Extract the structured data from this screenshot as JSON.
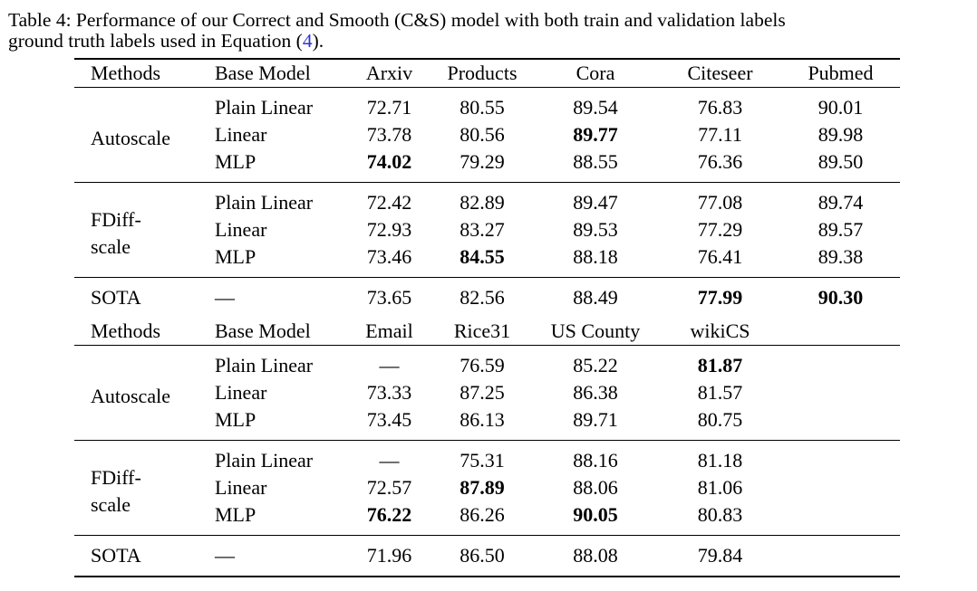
{
  "caption": {
    "line1": "Table 4: Performance of our Correct and Smooth (C&S) model with both train and validation labels",
    "line2_before_ref": "ground truth labels used in Equation (",
    "ref": "4",
    "line2_after_ref": ")."
  },
  "table": {
    "blocks": [
      {
        "header": [
          "Methods",
          "Base Model",
          "Arxiv",
          "Products",
          "Cora",
          "Citeseer",
          "Pubmed"
        ],
        "groups": [
          {
            "method": "Autoscale",
            "rows": [
              {
                "base": "Plain Linear",
                "values": [
                  "72.71",
                  "80.55",
                  "89.54",
                  "76.83",
                  "90.01"
                ],
                "bold": [
                  false,
                  false,
                  false,
                  false,
                  false
                ]
              },
              {
                "base": "Linear",
                "values": [
                  "73.78",
                  "80.56",
                  "89.77",
                  "77.11",
                  "89.98"
                ],
                "bold": [
                  false,
                  false,
                  true,
                  false,
                  false
                ]
              },
              {
                "base": "MLP",
                "values": [
                  "74.02",
                  "79.29",
                  "88.55",
                  "76.36",
                  "89.50"
                ],
                "bold": [
                  true,
                  false,
                  false,
                  false,
                  false
                ]
              }
            ]
          },
          {
            "method": "FDiff-\nscale",
            "rows": [
              {
                "base": "Plain Linear",
                "values": [
                  "72.42",
                  "82.89",
                  "89.47",
                  "77.08",
                  "89.74"
                ],
                "bold": [
                  false,
                  false,
                  false,
                  false,
                  false
                ]
              },
              {
                "base": "Linear",
                "values": [
                  "72.93",
                  "83.27",
                  "89.53",
                  "77.29",
                  "89.57"
                ],
                "bold": [
                  false,
                  false,
                  false,
                  false,
                  false
                ]
              },
              {
                "base": "MLP",
                "values": [
                  "73.46",
                  "84.55",
                  "88.18",
                  "76.41",
                  "89.38"
                ],
                "bold": [
                  false,
                  true,
                  false,
                  false,
                  false
                ]
              }
            ]
          }
        ],
        "sota": {
          "method": "SOTA",
          "base": "—",
          "values": [
            "73.65",
            "82.56",
            "88.49",
            "77.99",
            "90.30"
          ],
          "bold": [
            false,
            false,
            false,
            true,
            true
          ]
        }
      },
      {
        "header": [
          "Methods",
          "Base Model",
          "Email",
          "Rice31",
          "US County",
          "wikiCS",
          ""
        ],
        "groups": [
          {
            "method": "Autoscale",
            "rows": [
              {
                "base": "Plain Linear",
                "values": [
                  "—",
                  "76.59",
                  "85.22",
                  "81.87",
                  ""
                ],
                "bold": [
                  false,
                  false,
                  false,
                  true,
                  false
                ]
              },
              {
                "base": "Linear",
                "values": [
                  "73.33",
                  "87.25",
                  "86.38",
                  "81.57",
                  ""
                ],
                "bold": [
                  false,
                  false,
                  false,
                  false,
                  false
                ]
              },
              {
                "base": "MLP",
                "values": [
                  "73.45",
                  "86.13",
                  "89.71",
                  "80.75",
                  ""
                ],
                "bold": [
                  false,
                  false,
                  false,
                  false,
                  false
                ]
              }
            ]
          },
          {
            "method": "FDiff-\nscale",
            "rows": [
              {
                "base": "Plain Linear",
                "values": [
                  "—",
                  "75.31",
                  "88.16",
                  "81.18",
                  ""
                ],
                "bold": [
                  false,
                  false,
                  false,
                  false,
                  false
                ]
              },
              {
                "base": "Linear",
                "values": [
                  "72.57",
                  "87.89",
                  "88.06",
                  "81.06",
                  ""
                ],
                "bold": [
                  false,
                  true,
                  false,
                  false,
                  false
                ]
              },
              {
                "base": "MLP",
                "values": [
                  "76.22",
                  "86.26",
                  "90.05",
                  "80.83",
                  ""
                ],
                "bold": [
                  true,
                  false,
                  true,
                  false,
                  false
                ]
              }
            ]
          }
        ],
        "sota": {
          "method": "SOTA",
          "base": "—",
          "values": [
            "71.96",
            "86.50",
            "88.08",
            "79.84",
            ""
          ],
          "bold": [
            false,
            false,
            false,
            false,
            false
          ]
        }
      }
    ]
  }
}
